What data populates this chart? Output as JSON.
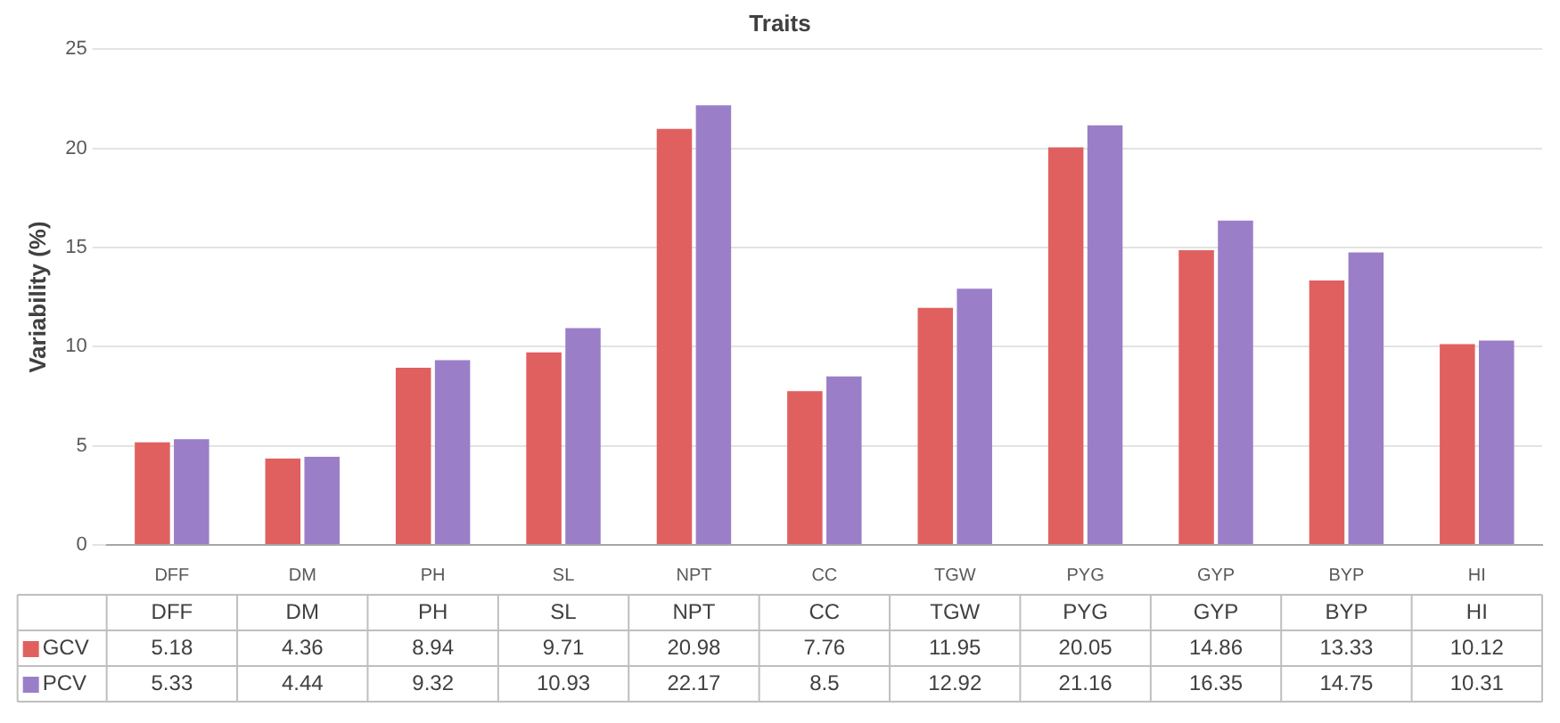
{
  "chart_data": {
    "type": "bar",
    "title": "Traits",
    "ylabel": "Variability (%)",
    "categories": [
      "DFF",
      "DM",
      "PH",
      "SL",
      "NPT",
      "CC",
      "TGW",
      "PYG",
      "GYP",
      "BYP",
      "HI"
    ],
    "series": [
      {
        "name": "GCV",
        "color": "#e06060",
        "values": [
          5.18,
          4.36,
          8.94,
          9.71,
          20.98,
          7.76,
          11.95,
          20.05,
          14.86,
          13.33,
          10.12
        ]
      },
      {
        "name": "PCV",
        "color": "#9a7fc8",
        "values": [
          5.33,
          4.44,
          9.32,
          10.93,
          22.17,
          8.5,
          12.92,
          21.16,
          16.35,
          14.75,
          10.31
        ]
      }
    ],
    "ylim": [
      0,
      25
    ],
    "yticks": [
      0,
      5,
      10,
      15,
      20,
      25
    ],
    "grid": "y",
    "legend": "bottom left",
    "data_labels": true
  }
}
